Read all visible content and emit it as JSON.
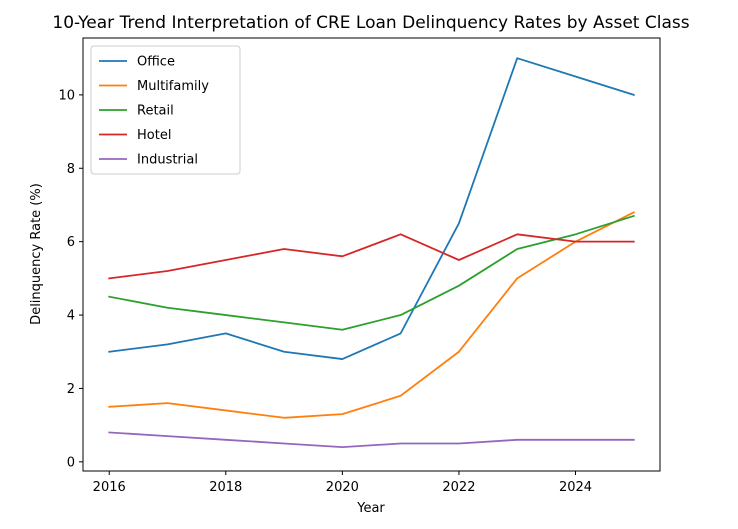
{
  "chart_data": {
    "type": "line",
    "title": "10-Year Trend Interpretation of CRE Loan Delinquency Rates by Asset Class",
    "xlabel": "Year",
    "ylabel": "Delinquency Rate (%)",
    "x": [
      2016,
      2017,
      2018,
      2019,
      2020,
      2021,
      2022,
      2023,
      2024,
      2025
    ],
    "xlim": [
      2015.55,
      2025.45
    ],
    "ylim": [
      -0.25,
      11.55
    ],
    "xticks": [
      2016,
      2018,
      2020,
      2022,
      2024
    ],
    "yticks": [
      0,
      2,
      4,
      6,
      8,
      10
    ],
    "grid": false,
    "legend_position": "upper-left",
    "series": [
      {
        "name": "Office",
        "color": "#1f77b4",
        "values": [
          3.0,
          3.2,
          3.5,
          3.0,
          2.8,
          3.5,
          6.5,
          11.0,
          10.5,
          10.0
        ]
      },
      {
        "name": "Multifamily",
        "color": "#ff7f0e",
        "values": [
          1.5,
          1.6,
          1.4,
          1.2,
          1.3,
          1.8,
          3.0,
          5.0,
          6.0,
          6.8
        ]
      },
      {
        "name": "Retail",
        "color": "#2ca02c",
        "values": [
          4.5,
          4.2,
          4.0,
          3.8,
          3.6,
          4.0,
          4.8,
          5.8,
          6.2,
          6.7
        ]
      },
      {
        "name": "Hotel",
        "color": "#d62728",
        "values": [
          5.0,
          5.2,
          5.5,
          5.8,
          5.6,
          6.2,
          5.5,
          6.2,
          6.0,
          6.0
        ]
      },
      {
        "name": "Industrial",
        "color": "#9467bd",
        "values": [
          0.8,
          0.7,
          0.6,
          0.5,
          0.4,
          0.5,
          0.5,
          0.6,
          0.6,
          0.6
        ]
      }
    ]
  }
}
